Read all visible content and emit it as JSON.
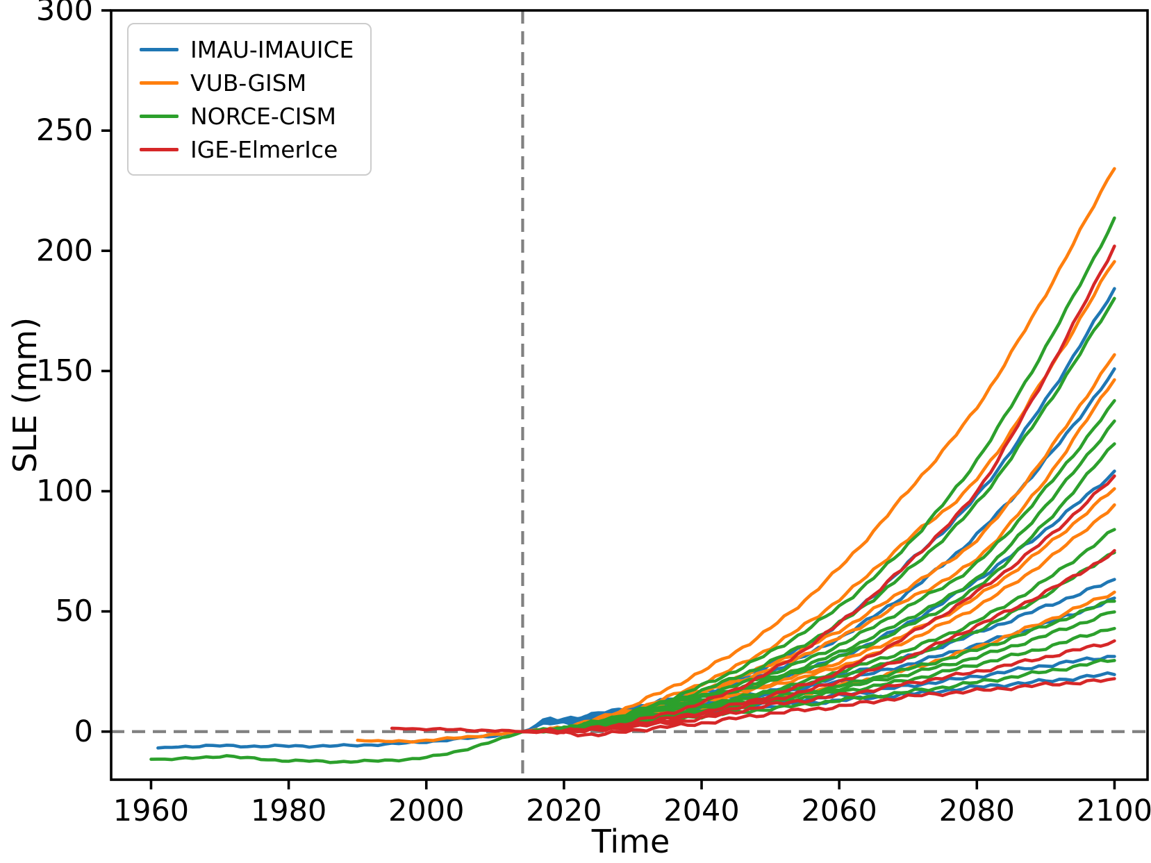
{
  "chart_data": {
    "type": "line",
    "title": "",
    "xlabel": "Time",
    "ylabel": "SLE (mm)",
    "xlim": [
      1954.2,
      2104.8
    ],
    "ylim": [
      -20,
      300
    ],
    "xticks": [
      1960,
      1980,
      2000,
      2020,
      2040,
      2060,
      2080,
      2100
    ],
    "yticks": [
      0,
      50,
      100,
      150,
      200,
      250,
      300
    ],
    "grid": false,
    "legend": {
      "position": "upper left",
      "entries": [
        {
          "label": "IMAU-IMAUICE",
          "color": "#1f77b4"
        },
        {
          "label": "VUB-GISM",
          "color": "#ff7f0e"
        },
        {
          "label": "NORCE-CISM",
          "color": "#2ca02c"
        },
        {
          "label": "IGE-ElmerIce",
          "color": "#d62728"
        }
      ]
    },
    "reference_lines": {
      "vertical_dashed_x": 2014,
      "horizontal_dashed_y": 0,
      "color": "#808080",
      "style": "dashed"
    },
    "projection_years": [
      2014,
      2015,
      2017,
      2020,
      2025,
      2030,
      2040,
      2050,
      2060,
      2070,
      2080,
      2090,
      2100
    ],
    "series": [
      {
        "model": "IMAU-IMAUICE",
        "kind": "historical",
        "years": [
          1961,
          1965,
          1970,
          1975,
          1980,
          1985,
          1990,
          1995,
          2000,
          2005,
          2008,
          2011,
          2014
        ],
        "sle_mm": [
          -6.8,
          -6.2,
          -5.9,
          -6.1,
          -6.0,
          -6.0,
          -5.7,
          -5.1,
          -4.2,
          -3.0,
          -2.2,
          -1.2,
          0
        ]
      },
      {
        "model": "IMAU-IMAUICE",
        "kind": "projection",
        "sle_mm": [
          0,
          0.8,
          4.5,
          5.0,
          7.5,
          10,
          17,
          28,
          45,
          70,
          98,
          138,
          184
        ]
      },
      {
        "model": "IMAU-IMAUICE",
        "kind": "projection",
        "sle_mm": [
          0,
          0.8,
          4.3,
          4.8,
          7.2,
          9.5,
          16,
          25,
          39,
          58,
          82,
          113,
          150
        ]
      },
      {
        "model": "IMAU-IMAUICE",
        "kind": "projection",
        "sle_mm": [
          0,
          0.7,
          4.2,
          4.6,
          6.8,
          8.5,
          14,
          21,
          31,
          45,
          63,
          84,
          108
        ]
      },
      {
        "model": "IMAU-IMAUICE",
        "kind": "projection",
        "sle_mm": [
          0,
          0.7,
          4.0,
          4.4,
          6.3,
          8,
          12,
          17,
          23,
          31,
          41,
          52,
          63
        ]
      },
      {
        "model": "IMAU-IMAUICE",
        "kind": "projection",
        "sle_mm": [
          0,
          0.6,
          3.8,
          4.2,
          5.8,
          7.5,
          11,
          15.5,
          21,
          28,
          36,
          45,
          55
        ]
      },
      {
        "model": "IMAU-IMAUICE",
        "kind": "projection",
        "sle_mm": [
          0,
          0.6,
          3.6,
          4.0,
          5.3,
          6.5,
          9,
          12,
          15,
          19,
          23,
          27.5,
          31.5
        ]
      },
      {
        "model": "IMAU-IMAUICE",
        "kind": "projection",
        "sle_mm": [
          0,
          0.5,
          3.3,
          3.6,
          4.8,
          6,
          8,
          10.5,
          13,
          15.5,
          18.5,
          21,
          24
        ]
      },
      {
        "model": "VUB-GISM",
        "kind": "historical",
        "years": [
          1990,
          1993,
          1996,
          1999,
          2002,
          2005,
          2008,
          2011,
          2014
        ],
        "sle_mm": [
          -3.6,
          -4.0,
          -4.1,
          -3.8,
          -3.2,
          -2.5,
          -1.7,
          -0.9,
          0
        ]
      },
      {
        "model": "VUB-GISM",
        "kind": "projection",
        "sle_mm": [
          0,
          0.2,
          0.7,
          1.5,
          5.5,
          11,
          25,
          43,
          68,
          100,
          135,
          182,
          235
        ]
      },
      {
        "model": "VUB-GISM",
        "kind": "projection",
        "sle_mm": [
          0,
          0.2,
          0.7,
          1.4,
          5.0,
          9,
          20,
          35,
          55,
          80,
          105,
          148,
          196
        ]
      },
      {
        "model": "VUB-GISM",
        "kind": "projection",
        "sle_mm": [
          0,
          0.2,
          0.6,
          1.3,
          4.5,
          8,
          17,
          28,
          42,
          60,
          80,
          115,
          157
        ]
      },
      {
        "model": "VUB-GISM",
        "kind": "projection",
        "sle_mm": [
          0,
          0.2,
          0.6,
          1.3,
          4.2,
          7.5,
          16,
          26,
          39,
          55,
          72,
          105,
          147
        ]
      },
      {
        "model": "VUB-GISM",
        "kind": "projection",
        "sle_mm": [
          0,
          0.1,
          0.5,
          1.2,
          3.8,
          6.5,
          13,
          20,
          29,
          41,
          56,
          77,
          101
        ]
      },
      {
        "model": "VUB-GISM",
        "kind": "projection",
        "sle_mm": [
          0,
          0.1,
          0.5,
          1.2,
          3.5,
          6,
          12,
          19,
          27,
          38,
          52,
          71,
          94
        ]
      },
      {
        "model": "VUB-GISM",
        "kind": "projection",
        "sle_mm": [
          0,
          0.1,
          0.4,
          1.0,
          3.0,
          5,
          9,
          13.5,
          19,
          26,
          35,
          46,
          58
        ]
      },
      {
        "model": "NORCE-CISM",
        "kind": "historical",
        "years": [
          1960,
          1964,
          1968,
          1971,
          1974,
          1978,
          1982,
          1986,
          1990,
          1994,
          1998,
          2001,
          2004,
          2007,
          2010,
          2012,
          2014
        ],
        "sle_mm": [
          -11.5,
          -11.3,
          -10.8,
          -10.1,
          -11.0,
          -11.9,
          -12.1,
          -12.6,
          -12.3,
          -12.1,
          -11.3,
          -10.3,
          -8.6,
          -6.3,
          -3.8,
          -2.0,
          0
        ]
      },
      {
        "model": "NORCE-CISM",
        "kind": "projection",
        "sle_mm": [
          0,
          0.2,
          0.6,
          1.2,
          4.5,
          8,
          19,
          33,
          52,
          78,
          113,
          160,
          213
        ]
      },
      {
        "model": "NORCE-CISM",
        "kind": "projection",
        "sle_mm": [
          0,
          0.2,
          0.6,
          1.2,
          4.2,
          7.5,
          17,
          29,
          45,
          67,
          95,
          135,
          180
        ]
      },
      {
        "model": "NORCE-CISM",
        "kind": "projection",
        "sle_mm": [
          0,
          0.2,
          0.5,
          1.1,
          4.0,
          7,
          15,
          24,
          36,
          52,
          70,
          101,
          137
        ]
      },
      {
        "model": "NORCE-CISM",
        "kind": "projection",
        "sle_mm": [
          0,
          0.2,
          0.5,
          1.1,
          3.8,
          6.5,
          14,
          22,
          33,
          47,
          64,
          94,
          129
        ]
      },
      {
        "model": "NORCE-CISM",
        "kind": "projection",
        "sle_mm": [
          0,
          0.1,
          0.5,
          1.0,
          3.5,
          6,
          13,
          21,
          31,
          44,
          60,
          87,
          120
        ]
      },
      {
        "model": "NORCE-CISM",
        "kind": "projection",
        "sle_mm": [
          0,
          0.1,
          0.5,
          1.0,
          3.2,
          5.5,
          11,
          17,
          25,
          34,
          46,
          63,
          84
        ]
      },
      {
        "model": "NORCE-CISM",
        "kind": "projection",
        "sle_mm": [
          0,
          0.1,
          0.4,
          0.9,
          3.0,
          5,
          10,
          16,
          23,
          31,
          42,
          57,
          75
        ]
      },
      {
        "model": "NORCE-CISM",
        "kind": "projection",
        "sle_mm": [
          0,
          0.1,
          0.4,
          0.8,
          2.7,
          4.5,
          9,
          14,
          19,
          26,
          34,
          44,
          55
        ]
      },
      {
        "model": "NORCE-CISM",
        "kind": "projection",
        "sle_mm": [
          0,
          0.1,
          0.4,
          0.8,
          2.5,
          4.5,
          8.5,
          13,
          18,
          24,
          31,
          40,
          50
        ]
      },
      {
        "model": "NORCE-CISM",
        "kind": "projection",
        "sle_mm": [
          0,
          0.1,
          0.3,
          0.7,
          2.3,
          4,
          8,
          12,
          16.5,
          21.5,
          28,
          35,
          43.5
        ]
      },
      {
        "model": "NORCE-CISM",
        "kind": "projection",
        "sle_mm": [
          0,
          0.1,
          0.3,
          0.7,
          2.0,
          3.5,
          6.5,
          9.5,
          13,
          16.5,
          20.5,
          25,
          30
        ]
      },
      {
        "model": "IGE-ElmerIce",
        "kind": "historical",
        "years": [
          1995,
          1998,
          2001,
          2004,
          2007,
          2010,
          2012,
          2014
        ],
        "sle_mm": [
          1.4,
          1.2,
          1.0,
          0.8,
          0.6,
          0.35,
          0.2,
          0
        ]
      },
      {
        "model": "IGE-ElmerIce",
        "kind": "projection",
        "sle_mm": [
          0,
          0.1,
          0.2,
          0.3,
          1.5,
          4,
          12,
          25,
          45,
          70,
          100,
          148,
          202
        ]
      },
      {
        "model": "IGE-ElmerIce",
        "kind": "projection",
        "sle_mm": [
          0,
          0.1,
          0.2,
          0.3,
          1.2,
          3,
          8,
          15,
          25,
          40,
          58,
          80,
          106
        ]
      },
      {
        "model": "IGE-ElmerIce",
        "kind": "projection",
        "sle_mm": [
          0,
          0.0,
          0.1,
          0.2,
          1.0,
          2.5,
          7,
          13,
          21,
          31,
          44,
          58,
          74.5
        ]
      },
      {
        "model": "IGE-ElmerIce",
        "kind": "projection",
        "sle_mm": [
          0,
          0.0,
          0.1,
          0.2,
          0.8,
          2,
          5.5,
          11,
          15,
          20,
          25,
          31,
          37.5
        ]
      },
      {
        "model": "IGE-ElmerIce",
        "kind": "projection",
        "sle_mm": [
          0,
          0.0,
          -0.3,
          -0.5,
          -1.3,
          0.5,
          3.5,
          7.5,
          10.5,
          14.5,
          17,
          19.5,
          21.5
        ]
      }
    ]
  }
}
